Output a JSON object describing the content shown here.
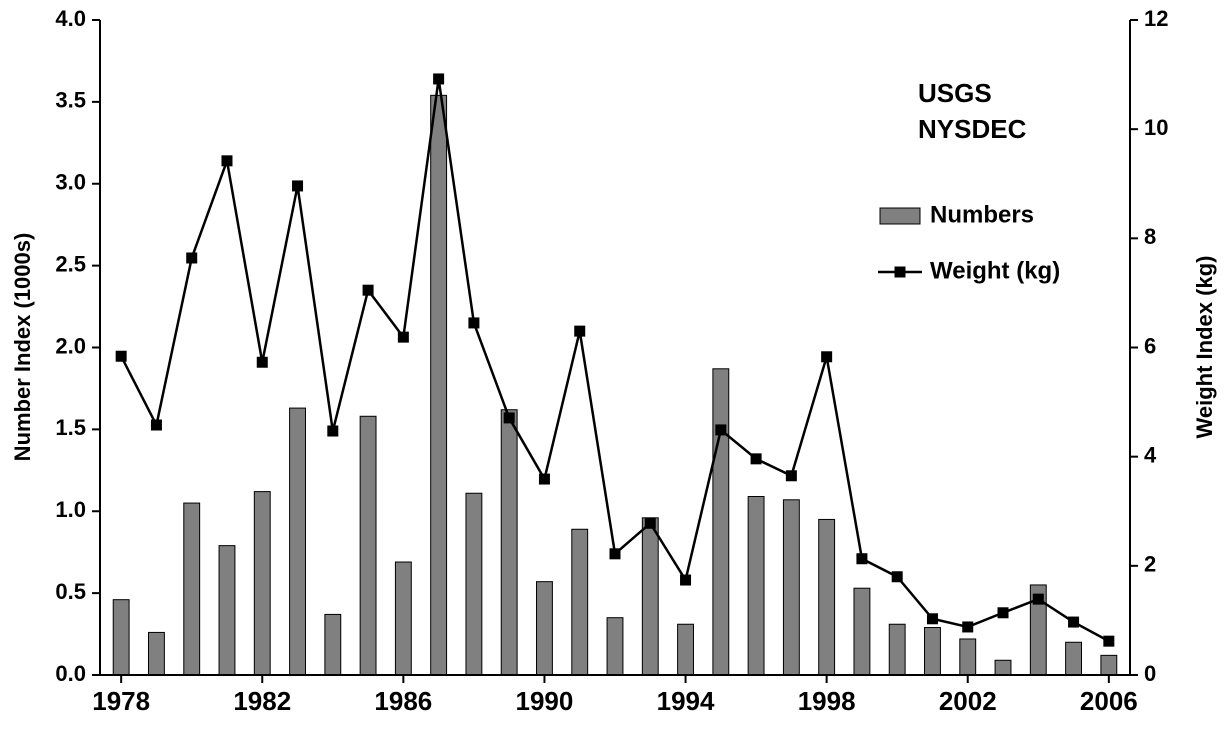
{
  "chart_data": {
    "type": "bar_line",
    "annotations": [
      "USGS",
      "NYSDEC"
    ],
    "y_label": "Number Index (1000s)",
    "y2_label": "Weight Index (kg)",
    "x": [
      1978,
      1979,
      1980,
      1981,
      1982,
      1983,
      1984,
      1985,
      1986,
      1987,
      1988,
      1989,
      1990,
      1991,
      1992,
      1993,
      1994,
      1995,
      1996,
      1997,
      1998,
      1999,
      2000,
      2001,
      2002,
      2003,
      2004,
      2005,
      2006
    ],
    "xlim": [
      1977.4,
      2006.6
    ],
    "xticks": [
      1978,
      1982,
      1986,
      1990,
      1994,
      1998,
      2002,
      2006
    ],
    "ylim": [
      0,
      4
    ],
    "yticks": [
      {
        "value": 0,
        "label": "0.0"
      },
      0.5,
      {
        "value": 1,
        "label": "1.0"
      },
      1.5,
      {
        "value": 2,
        "label": "2.0"
      },
      2.5,
      {
        "value": 3,
        "label": "3.0"
      },
      3.5,
      {
        "value": 4,
        "label": "4.0"
      }
    ],
    "y2lim": [
      0,
      12
    ],
    "y2ticks": [
      0,
      2,
      4,
      6,
      8,
      10,
      12
    ],
    "series": [
      {
        "name": "Numbers",
        "color": "#808080",
        "kind": "bar",
        "values": [
          0.46,
          0.26,
          1.05,
          0.79,
          1.12,
          1.63,
          0.37,
          1.58,
          0.69,
          3.54,
          1.11,
          1.62,
          0.57,
          0.89,
          0.35,
          0.96,
          0.31,
          1.87,
          1.09,
          1.07,
          0.95,
          0.53,
          0.31,
          0.29,
          0.22,
          0.09,
          0.55,
          0.2,
          0.12
        ]
      },
      {
        "name": "Weight (kg)",
        "color": "#000000",
        "kind": "line",
        "axis": "y2",
        "values": [
          5.84,
          4.58,
          7.64,
          9.42,
          5.73,
          8.96,
          4.47,
          7.05,
          6.19,
          10.92,
          6.45,
          4.71,
          3.59,
          6.3,
          2.22,
          2.78,
          1.74,
          4.49,
          3.96,
          3.65,
          5.83,
          2.13,
          1.8,
          1.03,
          0.88,
          1.14,
          1.39,
          0.97,
          0.62
        ]
      }
    ]
  }
}
